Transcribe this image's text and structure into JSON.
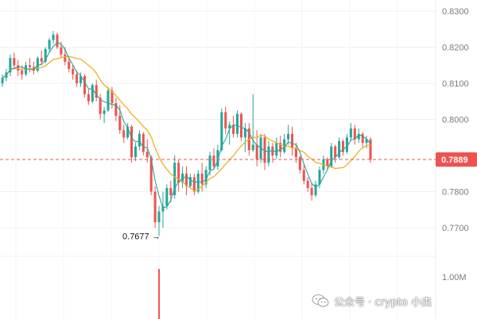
{
  "chart_data": {
    "type": "candlestick",
    "title": "",
    "xlabel": "",
    "ylabel": "",
    "ylim": [
      0.763,
      0.833
    ],
    "y_ticks": [
      {
        "value": 0.83,
        "label": "0.8300"
      },
      {
        "value": 0.82,
        "label": "0.8200"
      },
      {
        "value": 0.81,
        "label": "0.8100"
      },
      {
        "value": 0.8,
        "label": "0.8000"
      },
      {
        "value": 0.78,
        "label": "0.7800"
      },
      {
        "value": 0.77,
        "label": "0.7700"
      }
    ],
    "volume_tick": {
      "label": "1.00M"
    },
    "current_price": {
      "value": 0.7889,
      "label": "0.7889"
    },
    "annotations": [
      {
        "text": "0.7677 →",
        "value": 0.7677
      }
    ],
    "volume_spike": 0.9,
    "grid": true,
    "colors": {
      "up": "#26a69a",
      "down": "#ef5350",
      "ma_fast": "#26a69a",
      "ma_slow": "#f2b01e",
      "price_line": "#ef5350",
      "grid": "#f0f0f0",
      "axis_text": "#7a7a7a"
    },
    "candles": [
      [
        0.81,
        0.8125,
        0.809,
        0.8115
      ],
      [
        0.8115,
        0.814,
        0.8105,
        0.813
      ],
      [
        0.813,
        0.818,
        0.812,
        0.817
      ],
      [
        0.817,
        0.8185,
        0.814,
        0.815
      ],
      [
        0.815,
        0.8165,
        0.812,
        0.8135
      ],
      [
        0.8135,
        0.815,
        0.811,
        0.8125
      ],
      [
        0.8125,
        0.816,
        0.812,
        0.815
      ],
      [
        0.815,
        0.817,
        0.813,
        0.8145
      ],
      [
        0.8145,
        0.816,
        0.8125,
        0.8135
      ],
      [
        0.8135,
        0.8175,
        0.813,
        0.817
      ],
      [
        0.817,
        0.819,
        0.815,
        0.816
      ],
      [
        0.816,
        0.82,
        0.8155,
        0.8195
      ],
      [
        0.8195,
        0.8225,
        0.8185,
        0.822
      ],
      [
        0.822,
        0.8245,
        0.821,
        0.8235
      ],
      [
        0.8235,
        0.824,
        0.8195,
        0.82
      ],
      [
        0.82,
        0.8215,
        0.817,
        0.818
      ],
      [
        0.818,
        0.82,
        0.815,
        0.816
      ],
      [
        0.816,
        0.817,
        0.813,
        0.814
      ],
      [
        0.814,
        0.815,
        0.811,
        0.8125
      ],
      [
        0.8125,
        0.8135,
        0.809,
        0.81
      ],
      [
        0.81,
        0.813,
        0.809,
        0.812
      ],
      [
        0.812,
        0.8125,
        0.806,
        0.807
      ],
      [
        0.807,
        0.8085,
        0.804,
        0.805
      ],
      [
        0.805,
        0.81,
        0.8045,
        0.8095
      ],
      [
        0.8095,
        0.811,
        0.805,
        0.806
      ],
      [
        0.806,
        0.807,
        0.8,
        0.8015
      ],
      [
        0.8015,
        0.8035,
        0.799,
        0.8025
      ],
      [
        0.8025,
        0.809,
        0.802,
        0.808
      ],
      [
        0.808,
        0.809,
        0.803,
        0.8045
      ],
      [
        0.8045,
        0.806,
        0.7995,
        0.801
      ],
      [
        0.801,
        0.804,
        0.796,
        0.797
      ],
      [
        0.797,
        0.7985,
        0.7935,
        0.795
      ],
      [
        0.795,
        0.799,
        0.7945,
        0.798
      ],
      [
        0.798,
        0.7985,
        0.788,
        0.7895
      ],
      [
        0.7895,
        0.7935,
        0.7885,
        0.7925
      ],
      [
        0.7925,
        0.797,
        0.7915,
        0.796
      ],
      [
        0.796,
        0.7965,
        0.79,
        0.791
      ],
      [
        0.791,
        0.7945,
        0.788,
        0.7895
      ],
      [
        0.7895,
        0.79,
        0.779,
        0.78
      ],
      [
        0.78,
        0.7815,
        0.77,
        0.7715
      ],
      [
        0.7715,
        0.776,
        0.7677,
        0.7745
      ],
      [
        0.7745,
        0.78,
        0.77,
        0.776
      ],
      [
        0.776,
        0.782,
        0.775,
        0.781
      ],
      [
        0.781,
        0.783,
        0.777,
        0.779
      ],
      [
        0.779,
        0.79,
        0.778,
        0.788
      ],
      [
        0.788,
        0.789,
        0.78,
        0.7825
      ],
      [
        0.7825,
        0.787,
        0.781,
        0.785
      ],
      [
        0.785,
        0.787,
        0.779,
        0.7815
      ],
      [
        0.7815,
        0.785,
        0.781,
        0.784
      ],
      [
        0.784,
        0.785,
        0.779,
        0.78
      ],
      [
        0.78,
        0.786,
        0.7795,
        0.785
      ],
      [
        0.785,
        0.788,
        0.78,
        0.782
      ],
      [
        0.782,
        0.787,
        0.781,
        0.786
      ],
      [
        0.786,
        0.791,
        0.7845,
        0.79
      ],
      [
        0.79,
        0.792,
        0.786,
        0.787
      ],
      [
        0.787,
        0.793,
        0.786,
        0.7915
      ],
      [
        0.7915,
        0.803,
        0.791,
        0.802
      ],
      [
        0.802,
        0.8035,
        0.796,
        0.7975
      ],
      [
        0.7975,
        0.7995,
        0.793,
        0.7985
      ],
      [
        0.7985,
        0.801,
        0.795,
        0.796
      ],
      [
        0.796,
        0.8025,
        0.795,
        0.8015
      ],
      [
        0.8015,
        0.802,
        0.794,
        0.795
      ],
      [
        0.795,
        0.799,
        0.791,
        0.7975
      ],
      [
        0.7975,
        0.799,
        0.79,
        0.7915
      ],
      [
        0.7915,
        0.807,
        0.791,
        0.793
      ],
      [
        0.793,
        0.797,
        0.787,
        0.789
      ],
      [
        0.789,
        0.796,
        0.788,
        0.795
      ],
      [
        0.795,
        0.796,
        0.786,
        0.788
      ],
      [
        0.788,
        0.794,
        0.787,
        0.7925
      ],
      [
        0.7925,
        0.7935,
        0.788,
        0.79
      ],
      [
        0.79,
        0.795,
        0.789,
        0.7935
      ],
      [
        0.7935,
        0.7955,
        0.7895,
        0.791
      ],
      [
        0.791,
        0.796,
        0.7905,
        0.7945
      ],
      [
        0.7945,
        0.7985,
        0.793,
        0.796
      ],
      [
        0.796,
        0.798,
        0.79,
        0.792
      ],
      [
        0.792,
        0.7935,
        0.788,
        0.7895
      ],
      [
        0.7895,
        0.79,
        0.785,
        0.786
      ],
      [
        0.786,
        0.7875,
        0.782,
        0.783
      ],
      [
        0.783,
        0.784,
        0.78,
        0.781
      ],
      [
        0.781,
        0.7825,
        0.7775,
        0.779
      ],
      [
        0.779,
        0.783,
        0.7785,
        0.782
      ],
      [
        0.782,
        0.787,
        0.781,
        0.786
      ],
      [
        0.786,
        0.79,
        0.785,
        0.789
      ],
      [
        0.789,
        0.7895,
        0.786,
        0.787
      ],
      [
        0.787,
        0.7935,
        0.7865,
        0.7925
      ],
      [
        0.7925,
        0.793,
        0.788,
        0.7895
      ],
      [
        0.7895,
        0.795,
        0.789,
        0.794
      ],
      [
        0.794,
        0.7945,
        0.79,
        0.791
      ],
      [
        0.791,
        0.796,
        0.7905,
        0.795
      ],
      [
        0.795,
        0.799,
        0.794,
        0.7975
      ],
      [
        0.7975,
        0.7985,
        0.793,
        0.7945
      ],
      [
        0.7945,
        0.7975,
        0.7935,
        0.796
      ],
      [
        0.796,
        0.7965,
        0.792,
        0.7935
      ],
      [
        0.7935,
        0.7955,
        0.792,
        0.7945
      ],
      [
        0.7945,
        0.795,
        0.788,
        0.7889
      ]
    ]
  },
  "watermark": {
    "text": "公众号 · crypto 小杰",
    "icon": "wechat-icon"
  }
}
